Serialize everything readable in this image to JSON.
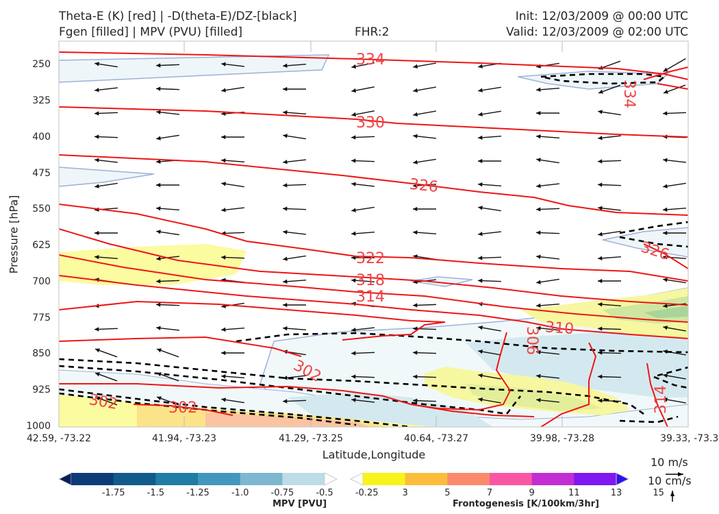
{
  "header": {
    "line1_left": "Theta-E (K) [red] | -D(theta-E)/DZ-[black]",
    "line2_left": "Fgen [filled] | MPV (PVU) [filled]",
    "line2_center": "FHR:2",
    "line1_right": "Init: 12/03/2009 @ 00:00 UTC",
    "line2_right": "Valid: 12/03/2009 @ 02:00 UTC"
  },
  "chart_data": {
    "type": "cross-section",
    "xlabel": "Latitude,Longitude",
    "ylabel": "Pressure [hPa]",
    "x_ticks": [
      "42.59, -73.22",
      "41.94, -73.23",
      "41.29, -73.25",
      "40.64, -73.27",
      "39.98, -73.28",
      "39.33, -73.3"
    ],
    "y_ticks": [
      "250",
      "325",
      "400",
      "475",
      "550",
      "625",
      "700",
      "775",
      "850",
      "925",
      "1000"
    ],
    "ylim": [
      1000,
      200
    ],
    "theta_e_labels": [
      "334",
      "330",
      "326",
      "322",
      "318",
      "314",
      "310",
      "306",
      "302",
      "302",
      "302",
      "326",
      "314",
      "334"
    ],
    "quiver_key": {
      "u_label": "10 m/s",
      "w_label": "10 cm/s"
    },
    "mpv_colorbar": {
      "title": "MPV [PVU]",
      "ticks": [
        "-1.75",
        "-1.5",
        "-1.25",
        "-1.0",
        "-0.75",
        "-0.5",
        "-0.25"
      ],
      "colors": [
        "#08205a",
        "#0c3c78",
        "#105a8c",
        "#1f7da5",
        "#4297bd",
        "#7db7d0",
        "#bcdce6",
        "#ffffff"
      ]
    },
    "fgen_colorbar": {
      "title": "Frontogenesis [K/100km/3hr]",
      "ticks": [
        "3",
        "5",
        "7",
        "9",
        "11",
        "13",
        "15"
      ],
      "colors": [
        "#ffffff",
        "#f7f31b",
        "#fbbd3b",
        "#fb8a6c",
        "#f957a4",
        "#c32dd4",
        "#7e19ef",
        "#3010ef"
      ]
    }
  }
}
